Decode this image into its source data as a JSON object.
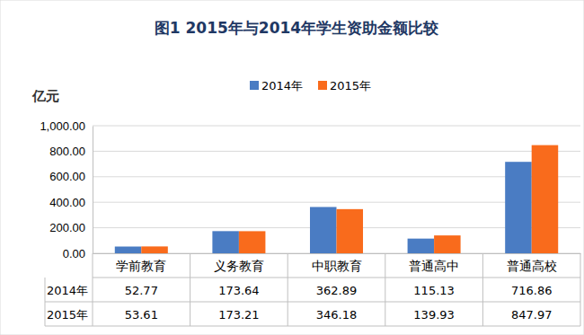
{
  "chart_data": {
    "type": "bar",
    "title": "图1   2015年与2014年学生资助金额比较",
    "y_label": "亿元",
    "categories": [
      "学前教育",
      "义务教育",
      "中职教育",
      "普通高中",
      "普通高校"
    ],
    "series": [
      {
        "name": "2014年",
        "color": "#4a7cc3",
        "values": [
          52.77,
          173.64,
          362.89,
          115.13,
          716.86
        ]
      },
      {
        "name": "2015年",
        "color": "#f96b1c",
        "values": [
          53.61,
          173.21,
          346.18,
          139.93,
          847.97
        ]
      }
    ],
    "ylim": [
      0,
      1000
    ],
    "yticks": [
      {
        "value": 0,
        "label": "0.00"
      },
      {
        "value": 200,
        "label": "200.00"
      },
      {
        "value": 400,
        "label": "400.00"
      },
      {
        "value": 600,
        "label": "600.00"
      },
      {
        "value": 800,
        "label": "800.00"
      },
      {
        "value": 1000,
        "label": "1,000.00"
      }
    ],
    "grid": true,
    "legend": "top",
    "data_labels": true
  }
}
